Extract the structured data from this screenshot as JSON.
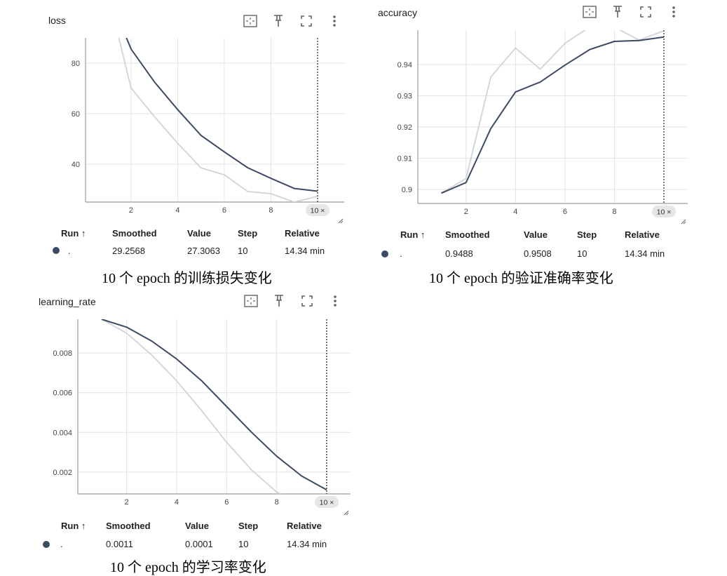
{
  "colors": {
    "smoothed_line": "#3c4a63",
    "raw_line": "#cfd4db",
    "grid": "#e3e3e3",
    "axis": "#9e9e9e",
    "marker": "#222222",
    "badge_bg": "#e6e6e6"
  },
  "table_headers": {
    "run": "Run ↑",
    "smoothed": "Smoothed",
    "value": "Value",
    "step": "Step",
    "relative": "Relative"
  },
  "step_marker": "10 ×",
  "icons": [
    "fit-domain-icon",
    "pin-icon",
    "fullscreen-icon",
    "more-vert-icon"
  ],
  "panels": {
    "loss": {
      "title": "loss",
      "row": {
        "run": ".",
        "smoothed": "29.2568",
        "value": "27.3063",
        "step": "10",
        "relative": "14.34 min"
      },
      "caption": "10 个 epoch 的训练损失变化"
    },
    "accuracy": {
      "title": "accuracy",
      "row": {
        "run": ".",
        "smoothed": "0.9488",
        "value": "0.9508",
        "step": "10",
        "relative": "14.34 min"
      },
      "caption": "10 个 epoch 的验证准确率变化"
    },
    "lr": {
      "title": "learning_rate",
      "row": {
        "run": ".",
        "smoothed": "0.0011",
        "value": "0.0001",
        "step": "10",
        "relative": "14.34 min"
      },
      "caption": "10 个 epoch 的学习率变化"
    }
  },
  "chart_data": [
    {
      "type": "line",
      "title": "loss",
      "x": [
        1,
        2,
        3,
        4,
        5,
        6,
        7,
        8,
        9,
        10
      ],
      "xticks": [
        "2",
        "4",
        "6",
        "8"
      ],
      "yticks": [
        "40",
        "60",
        "80"
      ],
      "xlim": [
        0.05,
        10.15
      ],
      "ylim": [
        25,
        90
      ],
      "grid": true,
      "series": [
        {
          "name": "Smoothed",
          "values": [
            108,
            85.6,
            72.6,
            61.6,
            51.4,
            44.9,
            38.6,
            34.4,
            30.4,
            29.3
          ]
        },
        {
          "name": "Value",
          "values": [
            108,
            70.2,
            58.9,
            48.3,
            38.5,
            35.8,
            29.2,
            28.3,
            25,
            27.3
          ]
        }
      ]
    },
    {
      "type": "line",
      "title": "accuracy",
      "x": [
        1,
        2,
        3,
        4,
        5,
        6,
        7,
        8,
        9,
        10
      ],
      "xticks": [
        "2",
        "4",
        "6",
        "8"
      ],
      "yticks": [
        "0.9",
        "0.91",
        "0.92",
        "0.93",
        "0.94"
      ],
      "xlim": [
        0.05,
        10.0
      ],
      "ylim": [
        0.8955,
        0.951
      ],
      "grid": true,
      "series": [
        {
          "name": "Smoothed",
          "values": [
            0.8988,
            0.9022,
            0.9195,
            0.9312,
            0.9344,
            0.9398,
            0.9448,
            0.9474,
            0.9477,
            0.9488
          ]
        },
        {
          "name": "Value",
          "values": [
            0.8988,
            0.9035,
            0.936,
            0.9453,
            0.9385,
            0.9468,
            0.952,
            0.952,
            0.9478,
            0.9508
          ]
        }
      ]
    },
    {
      "type": "line",
      "title": "learning_rate",
      "x": [
        1,
        2,
        3,
        4,
        5,
        6,
        7,
        8,
        9,
        10
      ],
      "xticks": [
        "2",
        "4",
        "6",
        "8"
      ],
      "yticks": [
        "0.002",
        "0.004",
        "0.006",
        "0.008"
      ],
      "xlim": [
        0.05,
        10.0
      ],
      "ylim": [
        0.0009,
        0.0097
      ],
      "grid": true,
      "series": [
        {
          "name": "Smoothed",
          "values": [
            0.0097,
            0.0093,
            0.0086,
            0.0077,
            0.0066,
            0.0053,
            0.004,
            0.0028,
            0.0018,
            0.0011
          ]
        },
        {
          "name": "Value",
          "values": [
            0.0097,
            0.009,
            0.0079,
            0.0066,
            0.0051,
            0.0035,
            0.0021,
            0.001,
            0.0003,
            0.0001
          ]
        }
      ]
    }
  ]
}
